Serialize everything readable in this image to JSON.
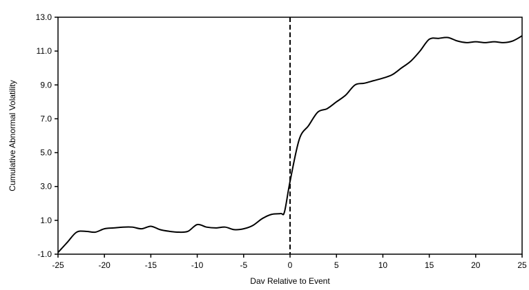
{
  "chart_data": {
    "type": "line",
    "title": "",
    "xlabel": "Dav Relative to Event",
    "ylabel": "Cumulative Abnormal Volatility",
    "xlim": [
      -25,
      25
    ],
    "ylim": [
      -1.0,
      13.0
    ],
    "x_ticks": [
      -25,
      -20,
      -15,
      -10,
      -5,
      0,
      5,
      10,
      15,
      20,
      25
    ],
    "x_tick_labels": [
      "-25",
      "-20",
      "-15",
      "-10",
      "-5",
      "0",
      "5",
      "10",
      "15",
      "20",
      "25"
    ],
    "y_ticks": [
      -1,
      1,
      3,
      5,
      7,
      9,
      11,
      13
    ],
    "y_tick_labels": [
      "-1.0",
      "1.0",
      "3.0",
      "5.0",
      "7.0",
      "9.0",
      "11.0",
      "13.0"
    ],
    "grid": false,
    "legend": "none",
    "event_line": {
      "x": 0,
      "style": "dashed"
    },
    "line_color": "#000000",
    "series": [
      {
        "x": [
          -25,
          -24,
          -23,
          -22,
          -21,
          -20,
          -19,
          -18,
          -17,
          -16,
          -15,
          -14,
          -13,
          -12,
          -11,
          -10,
          -9,
          -8,
          -7,
          -6,
          -5,
          -4,
          -3,
          -2,
          -1,
          -0.6,
          0,
          1,
          2,
          3,
          4,
          5,
          6,
          7,
          8,
          9,
          10,
          11,
          12,
          13,
          14,
          15,
          16,
          17,
          18,
          19,
          20,
          21,
          22,
          23,
          24,
          25
        ],
        "values": [
          -0.9,
          -0.3,
          0.3,
          0.35,
          0.3,
          0.5,
          0.55,
          0.6,
          0.6,
          0.5,
          0.65,
          0.45,
          0.35,
          0.3,
          0.35,
          0.75,
          0.6,
          0.55,
          0.6,
          0.45,
          0.5,
          0.7,
          1.1,
          1.35,
          1.4,
          1.5,
          3.3,
          5.8,
          6.6,
          7.4,
          7.6,
          8.0,
          8.4,
          9.0,
          9.1,
          9.25,
          9.4,
          9.6,
          10.0,
          10.4,
          11.0,
          11.7,
          11.75,
          11.8,
          11.6,
          11.5,
          11.55,
          11.5,
          11.55,
          11.5,
          11.6,
          11.9
        ]
      }
    ]
  }
}
